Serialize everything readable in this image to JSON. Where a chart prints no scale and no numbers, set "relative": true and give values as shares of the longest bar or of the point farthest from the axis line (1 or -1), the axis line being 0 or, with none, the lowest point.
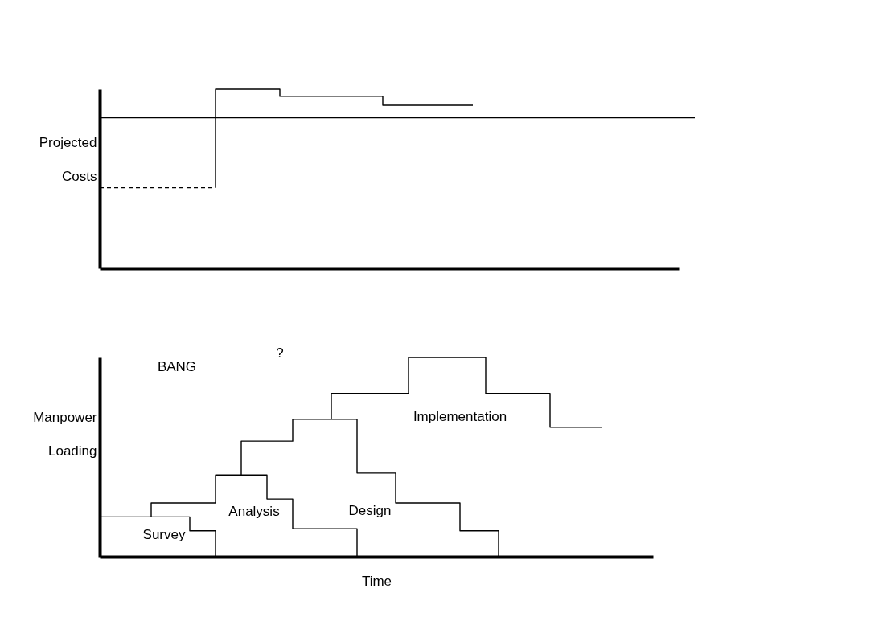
{
  "chart_data": [
    {
      "type": "step",
      "ylabel": "Projected Costs",
      "relative": true,
      "categories": [
        null,
        null,
        null,
        null,
        null,
        null,
        null,
        null,
        null,
        null,
        null,
        null,
        null,
        null,
        null,
        null,
        null,
        null,
        null,
        null,
        null,
        null,
        null,
        null,
        null,
        null,
        null,
        null,
        null,
        null,
        null,
        null,
        null,
        null,
        null,
        null,
        null,
        null,
        null,
        null,
        null,
        null,
        null,
        null,
        null,
        null
      ],
      "series": [
        {
          "color": "#000000",
          "line_style": "dashed",
          "values": [
            0.45,
            0.45,
            0.45,
            0.45,
            0.45,
            0.45,
            0.45,
            0.45,
            0.45,
            0.45,
            null,
            null,
            null,
            null,
            null,
            null,
            null,
            null,
            null,
            null,
            null,
            null,
            null,
            null,
            null,
            null,
            null,
            null,
            null,
            null,
            null,
            null,
            null,
            null,
            null,
            null,
            null,
            null,
            null,
            null,
            null,
            null,
            null,
            null,
            null,
            null
          ]
        },
        {
          "color": "#000000",
          "values": [
            null,
            null,
            null,
            null,
            null,
            null,
            null,
            null,
            null,
            0.45,
            1,
            1,
            1,
            1,
            1,
            0.96,
            0.96,
            0.96,
            0.96,
            0.96,
            0.96,
            0.96,
            0.96,
            0.91,
            0.91,
            0.91,
            0.91,
            0.91,
            0.91,
            0.91,
            null,
            null,
            null,
            null,
            null,
            null,
            null,
            null,
            null,
            null,
            null,
            null,
            null,
            null,
            null,
            null
          ]
        }
      ],
      "ref_lines": [
        {
          "axis": "y",
          "value": 0.84,
          "color": "#000000"
        }
      ]
    },
    {
      "type": "step",
      "ylabel": "Manpower Loading",
      "xlabel": "Time",
      "relative": true,
      "categories": [
        null,
        null,
        null,
        null,
        null,
        null,
        null,
        null,
        null,
        null,
        null,
        null,
        null,
        null,
        null,
        null,
        null,
        null,
        null,
        null,
        null,
        null,
        null,
        null,
        null,
        null,
        null,
        null,
        null,
        null,
        null,
        null,
        null,
        null,
        null,
        null,
        null,
        null,
        null,
        null,
        null,
        null,
        null,
        null
      ],
      "series": [
        {
          "name": "Survey",
          "color": "#000000",
          "values": [
            0.2,
            0.2,
            0.2,
            0.2,
            0.2,
            0.2,
            0.2,
            0.2,
            0.13,
            0.13,
            0,
            null,
            null,
            null,
            null,
            null,
            null,
            null,
            null,
            null,
            null,
            null,
            null,
            null,
            null,
            null,
            null,
            null,
            null,
            null,
            null,
            null,
            null,
            null,
            null,
            null,
            null,
            null,
            null,
            null,
            null,
            null,
            null,
            null
          ]
        },
        {
          "name": "Analysis",
          "color": "#000000",
          "values": [
            null,
            null,
            null,
            null,
            0.2,
            0.27,
            0.27,
            0.27,
            0.27,
            0.27,
            0.41,
            0.41,
            0.41,
            0.41,
            0.29,
            0.29,
            0.14,
            0.14,
            0.14,
            0.14,
            0.14,
            0,
            null,
            null,
            null,
            null,
            null,
            null,
            null,
            null,
            null,
            null,
            null,
            null,
            null,
            null,
            null,
            null,
            null,
            null,
            null,
            null,
            null,
            null
          ]
        },
        {
          "name": "Design",
          "color": "#000000",
          "values": [
            null,
            null,
            null,
            null,
            null,
            null,
            null,
            null,
            null,
            null,
            null,
            0.41,
            0.58,
            0.58,
            0.58,
            0.58,
            0.69,
            0.69,
            0.69,
            0.69,
            0.69,
            0.42,
            0.42,
            0.42,
            0.27,
            0.27,
            0.27,
            0.27,
            0.27,
            0.13,
            0.13,
            0.13,
            0,
            null,
            null,
            null,
            null,
            null,
            null,
            null,
            null,
            null,
            null,
            null
          ]
        },
        {
          "name": "Implementation",
          "color": "#000000",
          "values": [
            null,
            null,
            null,
            null,
            null,
            null,
            null,
            null,
            null,
            null,
            null,
            null,
            null,
            null,
            null,
            null,
            null,
            null,
            0.69,
            0.82,
            0.82,
            0.82,
            0.82,
            0.82,
            0.82,
            1,
            1,
            1,
            1,
            1,
            1,
            0.82,
            0.82,
            0.82,
            0.82,
            0.82,
            0.65,
            0.65,
            0.65,
            0.65,
            null,
            null,
            null,
            null
          ]
        }
      ],
      "annotations": [
        "BANG",
        "?"
      ]
    }
  ]
}
